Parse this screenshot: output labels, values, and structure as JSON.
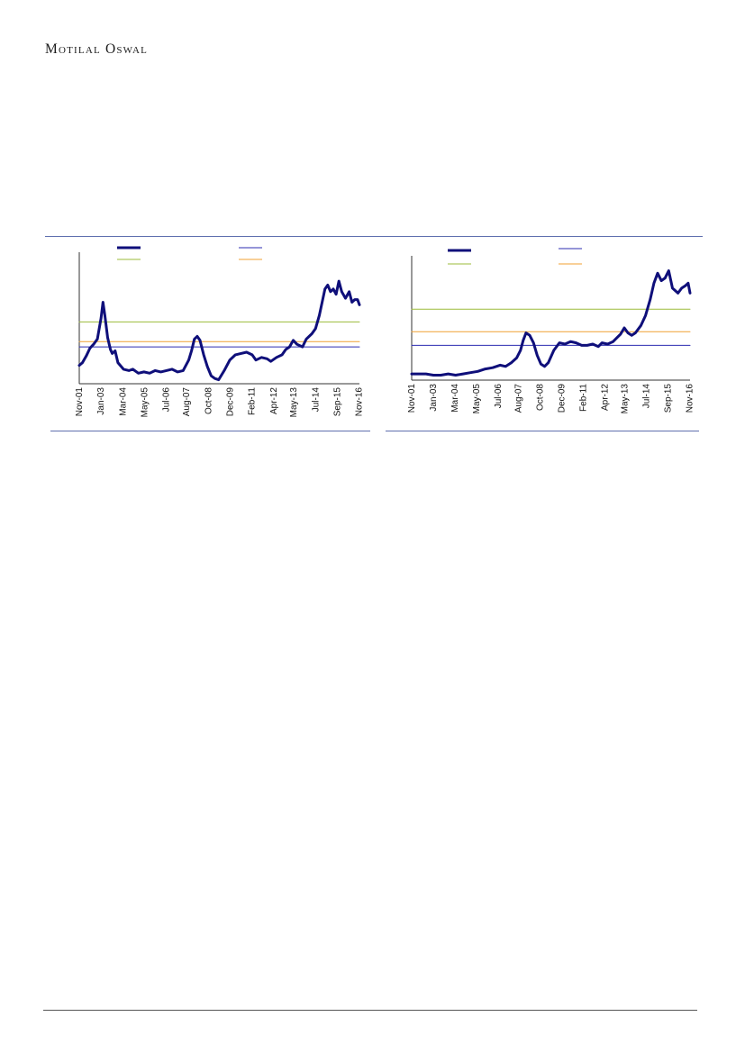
{
  "page": {
    "brand": "Motilal Oswal"
  },
  "colors": {
    "series": "#0f0f7a",
    "blue_line": "#2b2bb0",
    "green_line": "#9bbb3a",
    "orange_line": "#f0a030",
    "rule": "#5f6fae",
    "axis": "#333333"
  },
  "chart_data": [
    {
      "type": "line",
      "title": "",
      "xlabel": "",
      "ylabel": "",
      "x_tick_labels": [
        "Nov-01",
        "Jan-03",
        "Mar-04",
        "May-05",
        "Jul-06",
        "Aug-07",
        "Oct-08",
        "Dec-09",
        "Feb-11",
        "Apr-12",
        "May-13",
        "Jul-14",
        "Sep-15",
        "Nov-16"
      ],
      "ylim": [
        0,
        100
      ],
      "y_ticks_visible": false,
      "legend_placement": "top",
      "grid": false,
      "series": [
        {
          "values": [
            [
              2001.83,
              14
            ],
            [
              2002.0,
              16
            ],
            [
              2002.2,
              21
            ],
            [
              2002.4,
              27
            ],
            [
              2002.6,
              30
            ],
            [
              2002.8,
              34
            ],
            [
              2003.0,
              50
            ],
            [
              2003.1,
              62
            ],
            [
              2003.2,
              52
            ],
            [
              2003.35,
              35
            ],
            [
              2003.5,
              26
            ],
            [
              2003.6,
              23
            ],
            [
              2003.75,
              25
            ],
            [
              2003.9,
              16
            ],
            [
              2004.2,
              11
            ],
            [
              2004.5,
              10
            ],
            [
              2004.7,
              11
            ],
            [
              2005.0,
              8
            ],
            [
              2005.3,
              9
            ],
            [
              2005.6,
              8
            ],
            [
              2005.9,
              10
            ],
            [
              2006.2,
              9
            ],
            [
              2006.5,
              10
            ],
            [
              2006.8,
              11
            ],
            [
              2007.1,
              9
            ],
            [
              2007.4,
              10
            ],
            [
              2007.7,
              18
            ],
            [
              2007.85,
              25
            ],
            [
              2008.0,
              34
            ],
            [
              2008.15,
              36
            ],
            [
              2008.3,
              33
            ],
            [
              2008.5,
              22
            ],
            [
              2008.7,
              13
            ],
            [
              2008.9,
              6
            ],
            [
              2009.1,
              4
            ],
            [
              2009.3,
              3
            ],
            [
              2009.6,
              10
            ],
            [
              2009.9,
              18
            ],
            [
              2010.2,
              22
            ],
            [
              2010.5,
              23
            ],
            [
              2010.8,
              24
            ],
            [
              2011.1,
              22
            ],
            [
              2011.3,
              18
            ],
            [
              2011.6,
              20
            ],
            [
              2011.9,
              19
            ],
            [
              2012.1,
              17
            ],
            [
              2012.4,
              20
            ],
            [
              2012.7,
              22
            ],
            [
              2012.9,
              26
            ],
            [
              2013.1,
              28
            ],
            [
              2013.3,
              33
            ],
            [
              2013.5,
              30
            ],
            [
              2013.8,
              28
            ],
            [
              2014.0,
              34
            ],
            [
              2014.3,
              38
            ],
            [
              2014.5,
              42
            ],
            [
              2014.7,
              52
            ],
            [
              2014.85,
              62
            ],
            [
              2015.0,
              72
            ],
            [
              2015.15,
              75
            ],
            [
              2015.3,
              70
            ],
            [
              2015.45,
              72
            ],
            [
              2015.6,
              68
            ],
            [
              2015.75,
              78
            ],
            [
              2015.9,
              70
            ],
            [
              2016.1,
              65
            ],
            [
              2016.3,
              70
            ],
            [
              2016.45,
              62
            ],
            [
              2016.6,
              64
            ],
            [
              2016.75,
              64
            ],
            [
              2016.85,
              60
            ]
          ]
        },
        {
          "values": [
            [
              2001.83,
              28
            ],
            [
              2016.85,
              28
            ]
          ]
        },
        {
          "values": [
            [
              2001.83,
              47
            ],
            [
              2016.85,
              47
            ]
          ]
        },
        {
          "values": [
            [
              2001.83,
              32
            ],
            [
              2016.85,
              32
            ]
          ]
        }
      ]
    },
    {
      "type": "line",
      "title": "",
      "xlabel": "",
      "ylabel": "",
      "x_tick_labels": [
        "Nov-01",
        "Jan-03",
        "Mar-04",
        "May-05",
        "Jul-06",
        "Aug-07",
        "Oct-08",
        "Dec-09",
        "Feb-11",
        "Apr-12",
        "May-13",
        "Jul-14",
        "Sep-15",
        "Nov-16"
      ],
      "ylim": [
        0,
        100
      ],
      "y_ticks_visible": false,
      "legend_placement": "top",
      "grid": false,
      "series": [
        {
          "values": [
            [
              2001.83,
              5
            ],
            [
              2002.2,
              5
            ],
            [
              2002.6,
              5
            ],
            [
              2003.0,
              4
            ],
            [
              2003.4,
              4
            ],
            [
              2003.8,
              5
            ],
            [
              2004.2,
              4
            ],
            [
              2004.6,
              5
            ],
            [
              2005.0,
              6
            ],
            [
              2005.4,
              7
            ],
            [
              2005.8,
              9
            ],
            [
              2006.2,
              10
            ],
            [
              2006.6,
              12
            ],
            [
              2006.9,
              11
            ],
            [
              2007.2,
              14
            ],
            [
              2007.5,
              18
            ],
            [
              2007.7,
              24
            ],
            [
              2007.85,
              32
            ],
            [
              2008.0,
              38
            ],
            [
              2008.2,
              36
            ],
            [
              2008.4,
              30
            ],
            [
              2008.6,
              20
            ],
            [
              2008.8,
              13
            ],
            [
              2009.0,
              11
            ],
            [
              2009.2,
              14
            ],
            [
              2009.5,
              24
            ],
            [
              2009.8,
              30
            ],
            [
              2010.1,
              29
            ],
            [
              2010.4,
              31
            ],
            [
              2010.7,
              30
            ],
            [
              2011.0,
              28
            ],
            [
              2011.3,
              28
            ],
            [
              2011.6,
              29
            ],
            [
              2011.9,
              27
            ],
            [
              2012.1,
              30
            ],
            [
              2012.4,
              29
            ],
            [
              2012.7,
              31
            ],
            [
              2012.9,
              34
            ],
            [
              2013.1,
              37
            ],
            [
              2013.3,
              42
            ],
            [
              2013.5,
              38
            ],
            [
              2013.7,
              36
            ],
            [
              2013.9,
              38
            ],
            [
              2014.2,
              44
            ],
            [
              2014.45,
              52
            ],
            [
              2014.7,
              65
            ],
            [
              2014.9,
              78
            ],
            [
              2015.1,
              86
            ],
            [
              2015.3,
              80
            ],
            [
              2015.5,
              82
            ],
            [
              2015.7,
              88
            ],
            [
              2015.9,
              74
            ],
            [
              2016.2,
              70
            ],
            [
              2016.4,
              74
            ],
            [
              2016.6,
              76
            ],
            [
              2016.75,
              78
            ],
            [
              2016.85,
              70
            ]
          ]
        },
        {
          "values": [
            [
              2001.83,
              28
            ],
            [
              2016.85,
              28
            ]
          ]
        },
        {
          "values": [
            [
              2001.83,
              57
            ],
            [
              2016.85,
              57
            ]
          ]
        },
        {
          "values": [
            [
              2001.83,
              39
            ],
            [
              2016.85,
              39
            ]
          ]
        }
      ]
    }
  ]
}
